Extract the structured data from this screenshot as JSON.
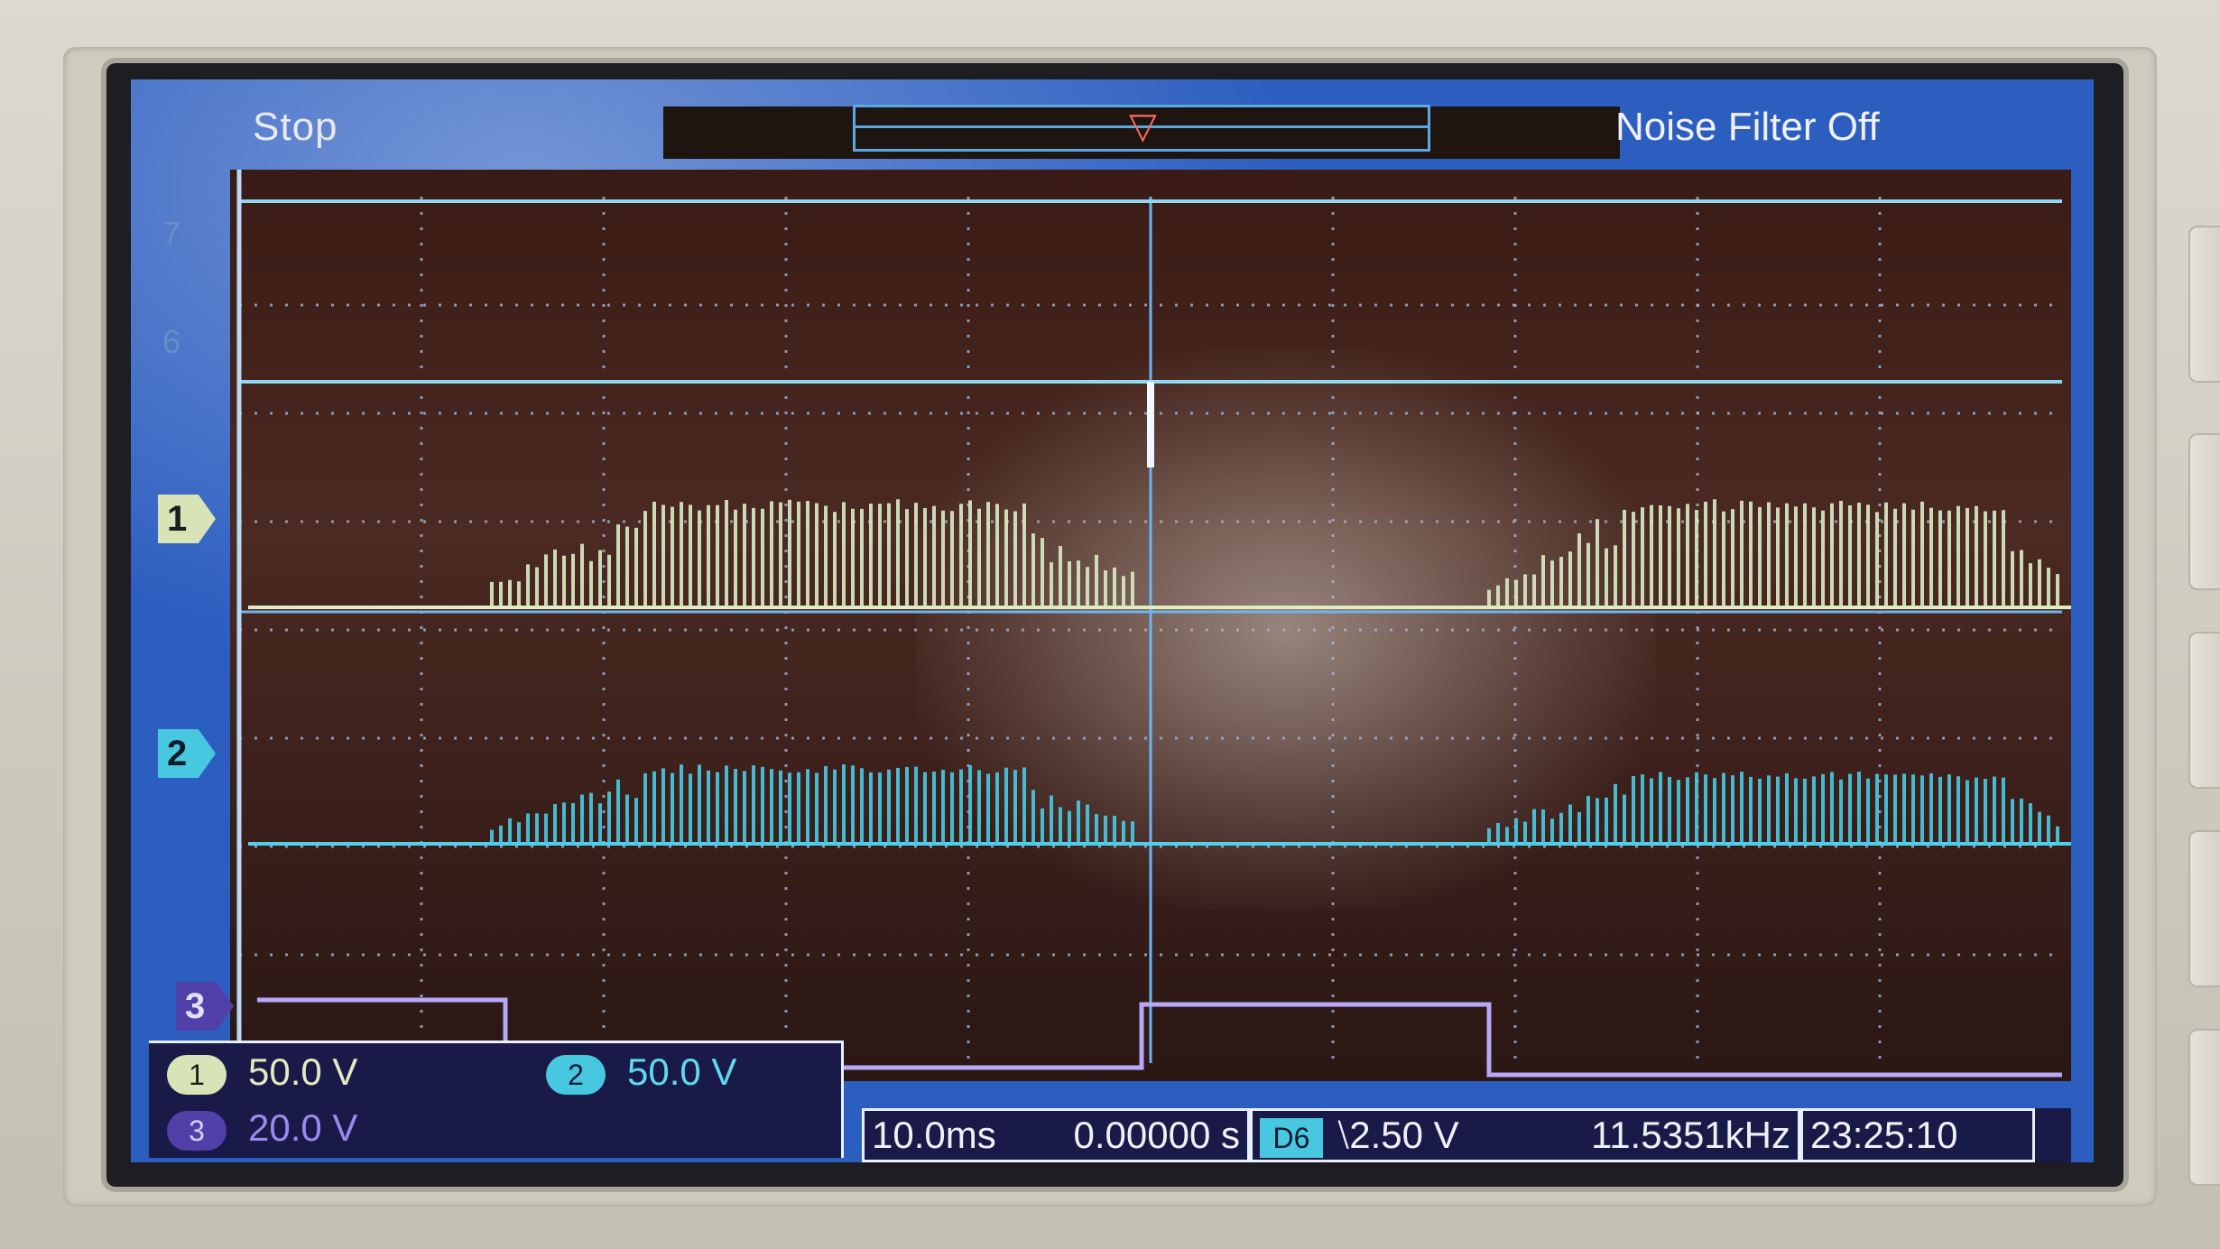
{
  "status": {
    "run_state": "Stop",
    "noise_filter": "Noise Filter Off"
  },
  "channels": [
    {
      "id": "1",
      "scale": "50.0 V",
      "color": "#d8e4b8"
    },
    {
      "id": "2",
      "scale": "50.0 V",
      "color": "#48c8e0"
    },
    {
      "id": "3",
      "scale": "20.0 V",
      "color": "#7a6ad8"
    }
  ],
  "aux_markers": {
    "ref_7": "7",
    "ref_6": "6"
  },
  "timebase": {
    "time_per_div": "10.0ms",
    "delay": "0.00000 s",
    "trigger_source": "D6",
    "trigger_level": "⧵2.50 V",
    "frequency": "11.5351kHz",
    "clock": "23:25:10"
  }
}
